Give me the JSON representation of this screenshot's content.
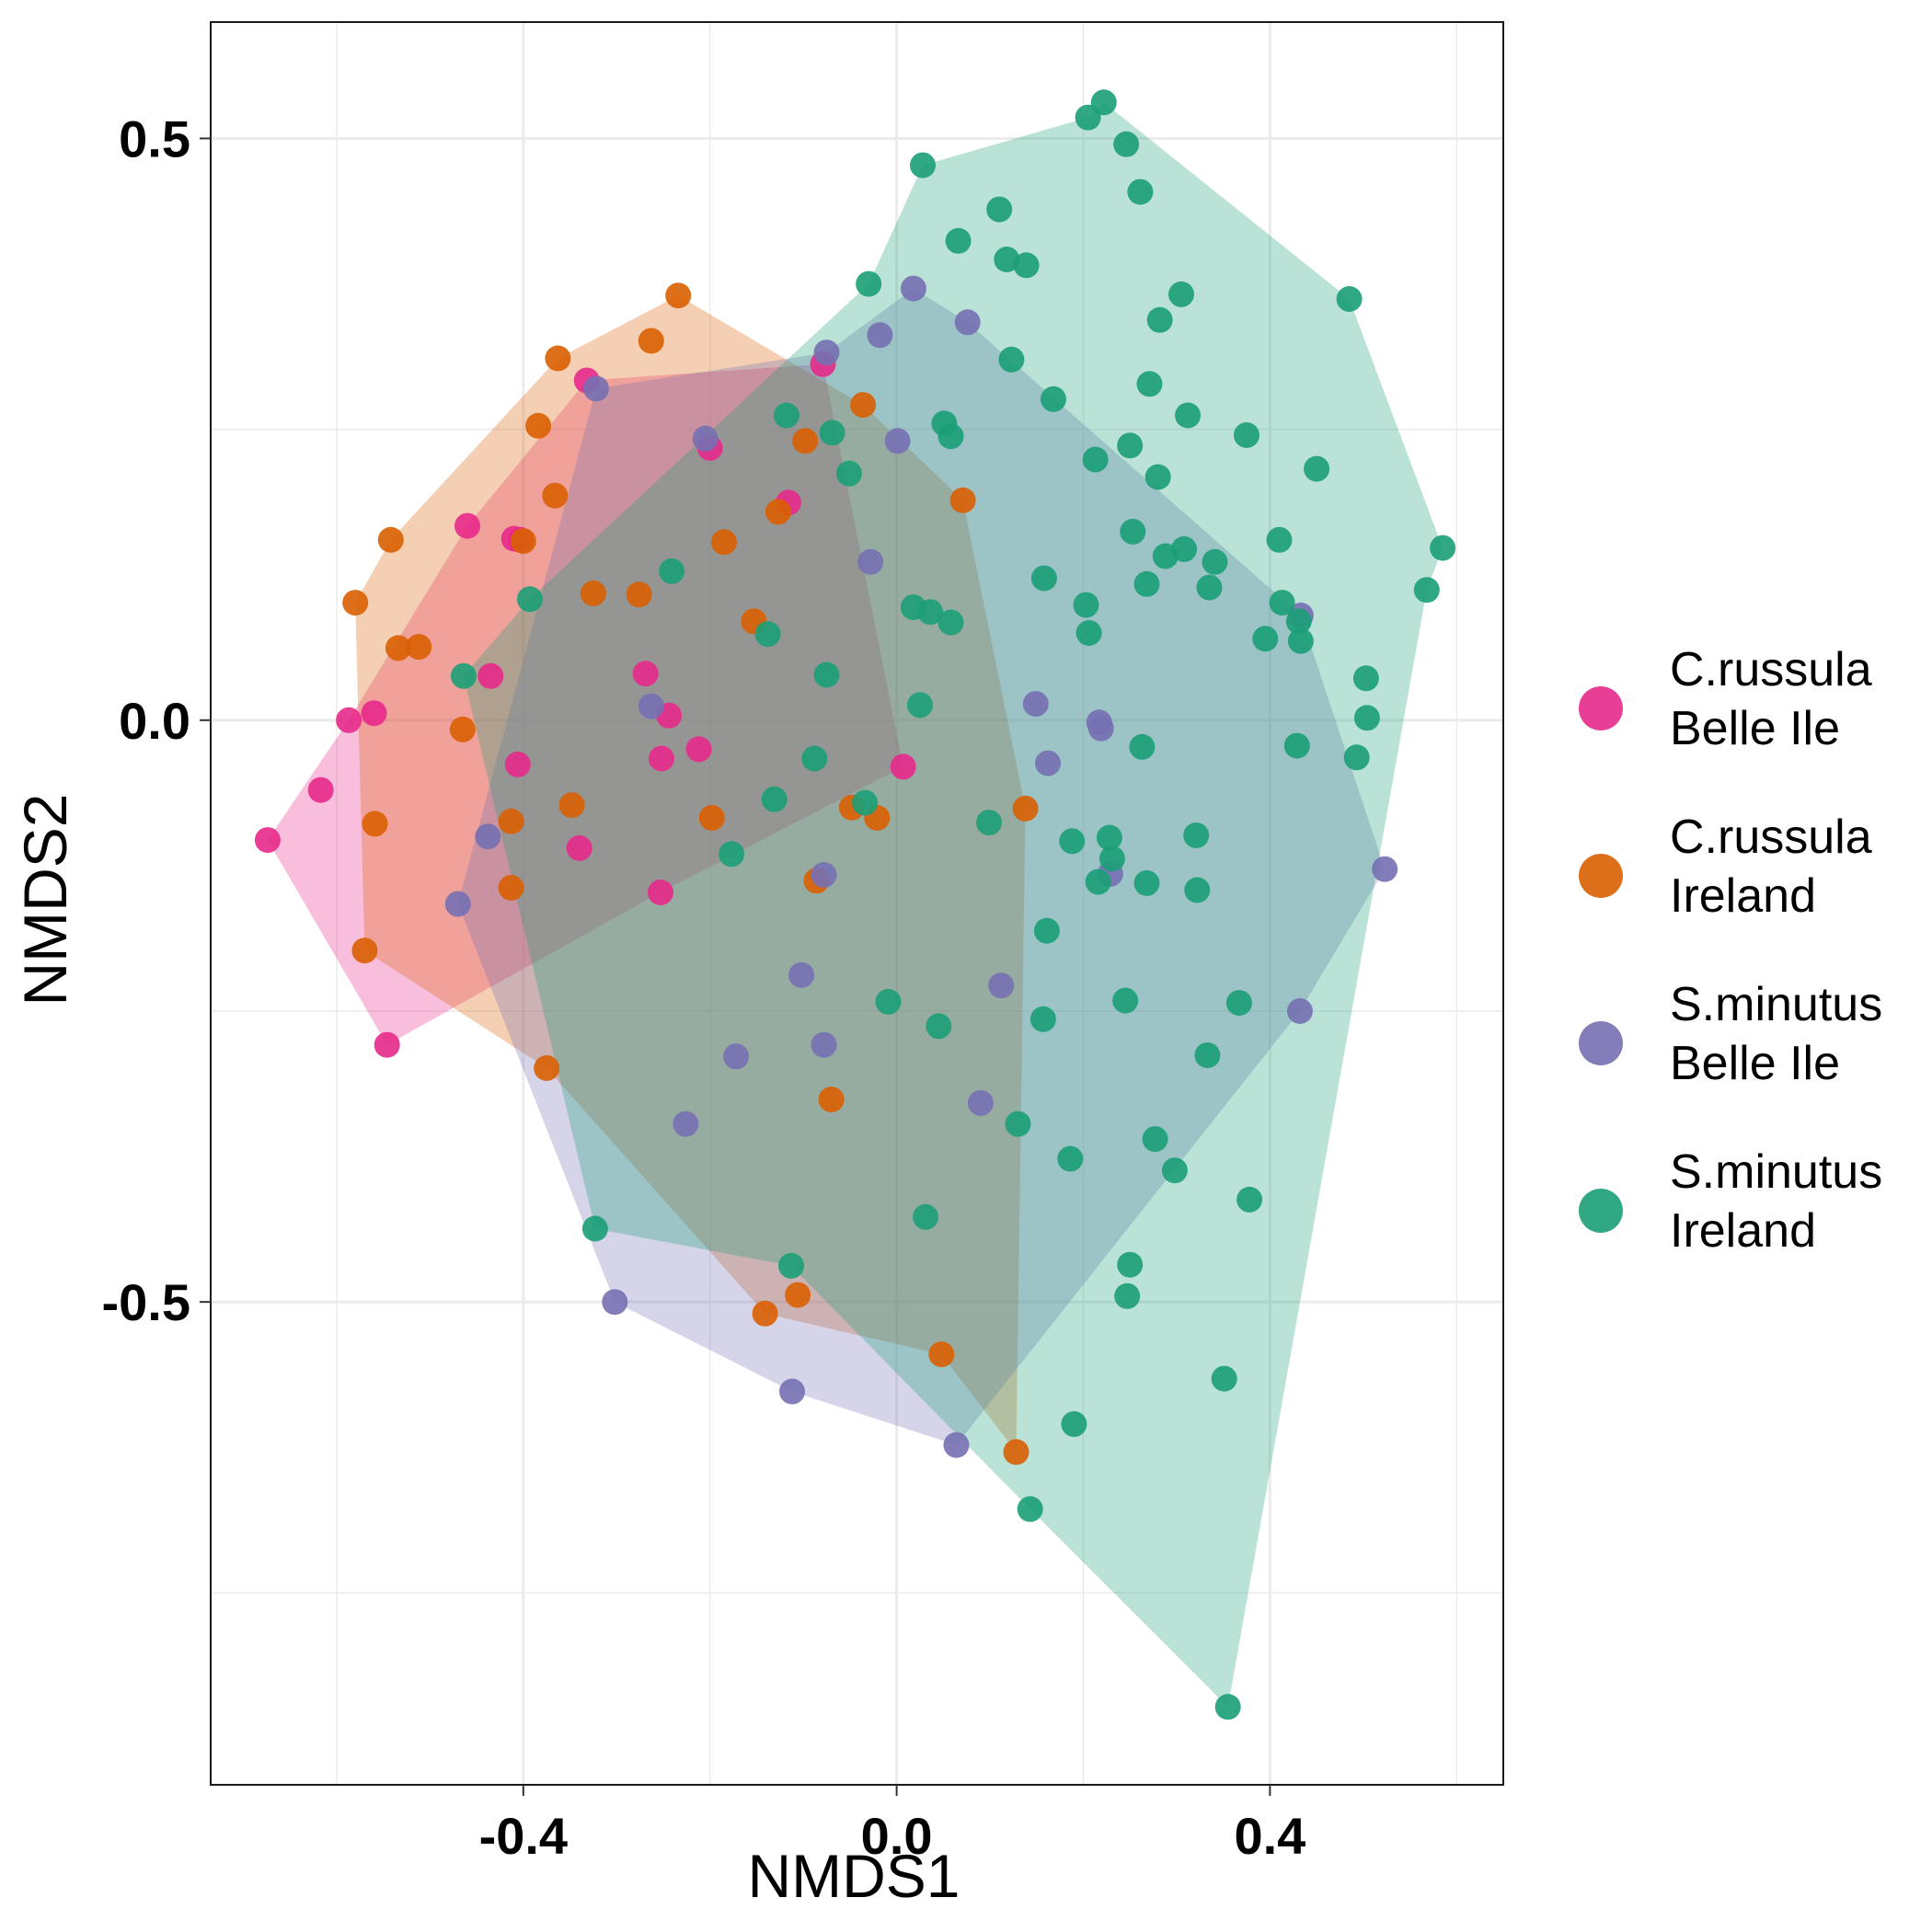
{
  "chart_data": {
    "type": "scatter",
    "xlabel": "NMDS1",
    "ylabel": "NMDS2",
    "xlim": [
      -0.735,
      0.65
    ],
    "ylim": [
      -0.915,
      0.6
    ],
    "x_ticks": [
      -0.4,
      0.0,
      0.4
    ],
    "x_tick_labels": [
      "-0.4",
      "0.0",
      "0.4"
    ],
    "y_ticks": [
      0.5,
      0.0,
      -0.5
    ],
    "y_tick_labels": [
      "0.5",
      "0.0",
      "-0.5"
    ],
    "grid": true,
    "legend_placement": "right",
    "series": [
      {
        "name_lines": [
          "C.russula",
          "Belle Ile"
        ],
        "color": "#E7298A",
        "points": [
          [
            -0.674,
            -0.103
          ],
          [
            -0.617,
            -0.06
          ],
          [
            -0.587,
            0.0
          ],
          [
            -0.56,
            0.006
          ],
          [
            -0.546,
            -0.279
          ],
          [
            -0.46,
            0.167
          ],
          [
            -0.41,
            0.156
          ],
          [
            -0.403,
            0.155
          ],
          [
            -0.435,
            0.038
          ],
          [
            -0.406,
            -0.038
          ],
          [
            -0.332,
            0.292
          ],
          [
            -0.2,
            0.234
          ],
          [
            -0.116,
            0.187
          ],
          [
            -0.079,
            0.306
          ],
          [
            -0.269,
            0.04
          ],
          [
            -0.244,
            0.004
          ],
          [
            -0.252,
            -0.033
          ],
          [
            -0.212,
            -0.025
          ],
          [
            -0.34,
            -0.11
          ],
          [
            -0.253,
            -0.148
          ],
          [
            0.007,
            -0.04
          ]
        ]
      },
      {
        "name_lines": [
          "C.russula",
          "Ireland"
        ],
        "color": "#D95F02",
        "points": [
          [
            -0.58,
            0.101
          ],
          [
            -0.542,
            0.155
          ],
          [
            -0.534,
            0.062
          ],
          [
            -0.512,
            0.063
          ],
          [
            -0.465,
            -0.008
          ],
          [
            -0.57,
            -0.198
          ],
          [
            -0.559,
            -0.089
          ],
          [
            -0.4,
            0.154
          ],
          [
            -0.384,
            0.253
          ],
          [
            -0.363,
            0.311
          ],
          [
            -0.366,
            0.193
          ],
          [
            -0.325,
            0.109
          ],
          [
            -0.276,
            0.108
          ],
          [
            -0.263,
            0.326
          ],
          [
            -0.234,
            0.365
          ],
          [
            -0.413,
            -0.087
          ],
          [
            -0.413,
            -0.144
          ],
          [
            -0.348,
            -0.073
          ],
          [
            -0.185,
            0.153
          ],
          [
            -0.198,
            -0.084
          ],
          [
            -0.153,
            0.085
          ],
          [
            -0.127,
            0.179
          ],
          [
            -0.098,
            0.24
          ],
          [
            -0.036,
            0.271
          ],
          [
            0.071,
            0.189
          ],
          [
            -0.048,
            -0.075
          ],
          [
            -0.021,
            -0.084
          ],
          [
            -0.086,
            -0.138
          ],
          [
            0.138,
            -0.076
          ],
          [
            -0.375,
            -0.299
          ],
          [
            -0.07,
            -0.326
          ],
          [
            -0.141,
            -0.51
          ],
          [
            -0.106,
            -0.494
          ],
          [
            0.048,
            -0.545
          ],
          [
            0.128,
            -0.629
          ]
        ]
      },
      {
        "name_lines": [
          "S.minutus",
          "Belle Ile"
        ],
        "color": "#7570B3",
        "points": [
          [
            -0.322,
            0.285
          ],
          [
            -0.205,
            0.242
          ],
          [
            -0.075,
            0.316
          ],
          [
            -0.018,
            0.331
          ],
          [
            0.018,
            0.371
          ],
          [
            0.076,
            0.342
          ],
          [
            0.001,
            0.24
          ],
          [
            -0.028,
            0.136
          ],
          [
            -0.263,
            0.012
          ],
          [
            -0.47,
            -0.158
          ],
          [
            -0.438,
            -0.1
          ],
          [
            -0.078,
            -0.133
          ],
          [
            -0.102,
            -0.219
          ],
          [
            -0.078,
            -0.279
          ],
          [
            -0.172,
            -0.289
          ],
          [
            -0.226,
            -0.347
          ],
          [
            0.112,
            -0.228
          ],
          [
            0.09,
            -0.329
          ],
          [
            0.149,
            0.014
          ],
          [
            0.162,
            -0.037
          ],
          [
            0.219,
            -0.007
          ],
          [
            0.217,
            -0.002
          ],
          [
            0.229,
            -0.132
          ],
          [
            0.433,
            0.09
          ],
          [
            0.432,
            -0.25
          ],
          [
            0.523,
            -0.128
          ],
          [
            -0.302,
            -0.5
          ],
          [
            -0.112,
            -0.577
          ],
          [
            0.064,
            -0.623
          ]
        ]
      },
      {
        "name_lines": [
          "S.minutus",
          "Ireland"
        ],
        "color": "#1B9E77",
        "points": [
          [
            0.205,
            0.518
          ],
          [
            0.222,
            0.531
          ],
          [
            0.246,
            0.495
          ],
          [
            0.261,
            0.454
          ],
          [
            0.028,
            0.477
          ],
          [
            0.066,
            0.412
          ],
          [
            0.11,
            0.439
          ],
          [
            0.118,
            0.396
          ],
          [
            0.139,
            0.391
          ],
          [
            0.305,
            0.366
          ],
          [
            0.282,
            0.344
          ],
          [
            0.485,
            0.362
          ],
          [
            -0.03,
            0.375
          ],
          [
            0.123,
            0.31
          ],
          [
            0.271,
            0.289
          ],
          [
            0.312,
            0.262
          ],
          [
            0.168,
            0.276
          ],
          [
            0.375,
            0.245
          ],
          [
            -0.118,
            0.262
          ],
          [
            -0.069,
            0.247
          ],
          [
            0.051,
            0.255
          ],
          [
            0.058,
            0.244
          ],
          [
            -0.051,
            0.212
          ],
          [
            0.213,
            0.224
          ],
          [
            0.25,
            0.236
          ],
          [
            0.28,
            0.209
          ],
          [
            0.45,
            0.216
          ],
          [
            0.585,
            0.148
          ],
          [
            -0.241,
            0.128
          ],
          [
            -0.393,
            0.104
          ],
          [
            -0.464,
            0.038
          ],
          [
            0.158,
            0.122
          ],
          [
            0.253,
            0.162
          ],
          [
            0.288,
            0.141
          ],
          [
            0.308,
            0.147
          ],
          [
            0.341,
            0.136
          ],
          [
            0.335,
            0.114
          ],
          [
            0.268,
            0.117
          ],
          [
            0.41,
            0.155
          ],
          [
            0.413,
            0.101
          ],
          [
            0.431,
            0.085
          ],
          [
            0.433,
            0.068
          ],
          [
            0.395,
            0.07
          ],
          [
            0.503,
            0.036
          ],
          [
            0.568,
            0.112
          ],
          [
            0.504,
            0.002
          ],
          [
            0.493,
            -0.032
          ],
          [
            0.429,
            -0.022
          ],
          [
            0.263,
            -0.023
          ],
          [
            0.203,
            0.099
          ],
          [
            0.206,
            0.075
          ],
          [
            0.018,
            0.097
          ],
          [
            0.036,
            0.093
          ],
          [
            0.058,
            0.084
          ],
          [
            -0.138,
            0.074
          ],
          [
            -0.075,
            0.039
          ],
          [
            0.025,
            0.013
          ],
          [
            -0.088,
            -0.033
          ],
          [
            -0.131,
            -0.068
          ],
          [
            -0.034,
            -0.071
          ],
          [
            0.099,
            -0.088
          ],
          [
            -0.177,
            -0.115
          ],
          [
            0.188,
            -0.104
          ],
          [
            0.228,
            -0.101
          ],
          [
            0.231,
            -0.119
          ],
          [
            0.216,
            -0.139
          ],
          [
            0.268,
            -0.14
          ],
          [
            0.321,
            -0.099
          ],
          [
            0.322,
            -0.146
          ],
          [
            0.161,
            -0.181
          ],
          [
            -0.009,
            -0.242
          ],
          [
            0.045,
            -0.263
          ],
          [
            0.157,
            -0.257
          ],
          [
            0.245,
            -0.241
          ],
          [
            0.367,
            -0.243
          ],
          [
            0.333,
            -0.288
          ],
          [
            0.13,
            -0.347
          ],
          [
            0.186,
            -0.377
          ],
          [
            0.277,
            -0.36
          ],
          [
            0.298,
            -0.387
          ],
          [
            0.378,
            -0.412
          ],
          [
            -0.323,
            -0.437
          ],
          [
            0.031,
            -0.427
          ],
          [
            -0.113,
            -0.469
          ],
          [
            0.25,
            -0.468
          ],
          [
            0.247,
            -0.495
          ],
          [
            0.351,
            -0.566
          ],
          [
            0.19,
            -0.605
          ],
          [
            0.143,
            -0.678
          ],
          [
            0.355,
            -0.848
          ]
        ]
      }
    ],
    "hulls": [
      {
        "series_index": 0,
        "color": "#E7298A",
        "points": [
          [
            -0.674,
            -0.103
          ],
          [
            -0.587,
            0.0
          ],
          [
            -0.46,
            0.167
          ],
          [
            -0.332,
            0.292
          ],
          [
            -0.079,
            0.306
          ],
          [
            0.007,
            -0.04
          ],
          [
            -0.253,
            -0.148
          ],
          [
            -0.546,
            -0.279
          ]
        ]
      },
      {
        "series_index": 1,
        "color": "#D95F02",
        "points": [
          [
            -0.58,
            0.101
          ],
          [
            -0.542,
            0.155
          ],
          [
            -0.363,
            0.311
          ],
          [
            -0.234,
            0.365
          ],
          [
            -0.036,
            0.271
          ],
          [
            0.071,
            0.189
          ],
          [
            0.138,
            -0.076
          ],
          [
            0.128,
            -0.629
          ],
          [
            0.048,
            -0.545
          ],
          [
            -0.141,
            -0.51
          ],
          [
            -0.375,
            -0.299
          ],
          [
            -0.57,
            -0.198
          ]
        ]
      },
      {
        "series_index": 2,
        "color": "#7570B3",
        "points": [
          [
            -0.322,
            0.285
          ],
          [
            -0.075,
            0.316
          ],
          [
            0.018,
            0.371
          ],
          [
            0.076,
            0.342
          ],
          [
            0.433,
            0.09
          ],
          [
            0.523,
            -0.128
          ],
          [
            0.432,
            -0.25
          ],
          [
            0.064,
            -0.623
          ],
          [
            -0.112,
            -0.577
          ],
          [
            -0.302,
            -0.5
          ],
          [
            -0.47,
            -0.158
          ]
        ]
      },
      {
        "series_index": 3,
        "color": "#1B9E77",
        "points": [
          [
            0.205,
            0.518
          ],
          [
            0.222,
            0.531
          ],
          [
            0.485,
            0.362
          ],
          [
            0.585,
            0.148
          ],
          [
            0.568,
            0.112
          ],
          [
            0.355,
            -0.848
          ],
          [
            0.143,
            -0.678
          ],
          [
            -0.113,
            -0.469
          ],
          [
            -0.323,
            -0.437
          ],
          [
            -0.464,
            0.038
          ],
          [
            -0.393,
            0.104
          ],
          [
            -0.03,
            0.375
          ],
          [
            0.028,
            0.477
          ]
        ]
      }
    ]
  }
}
